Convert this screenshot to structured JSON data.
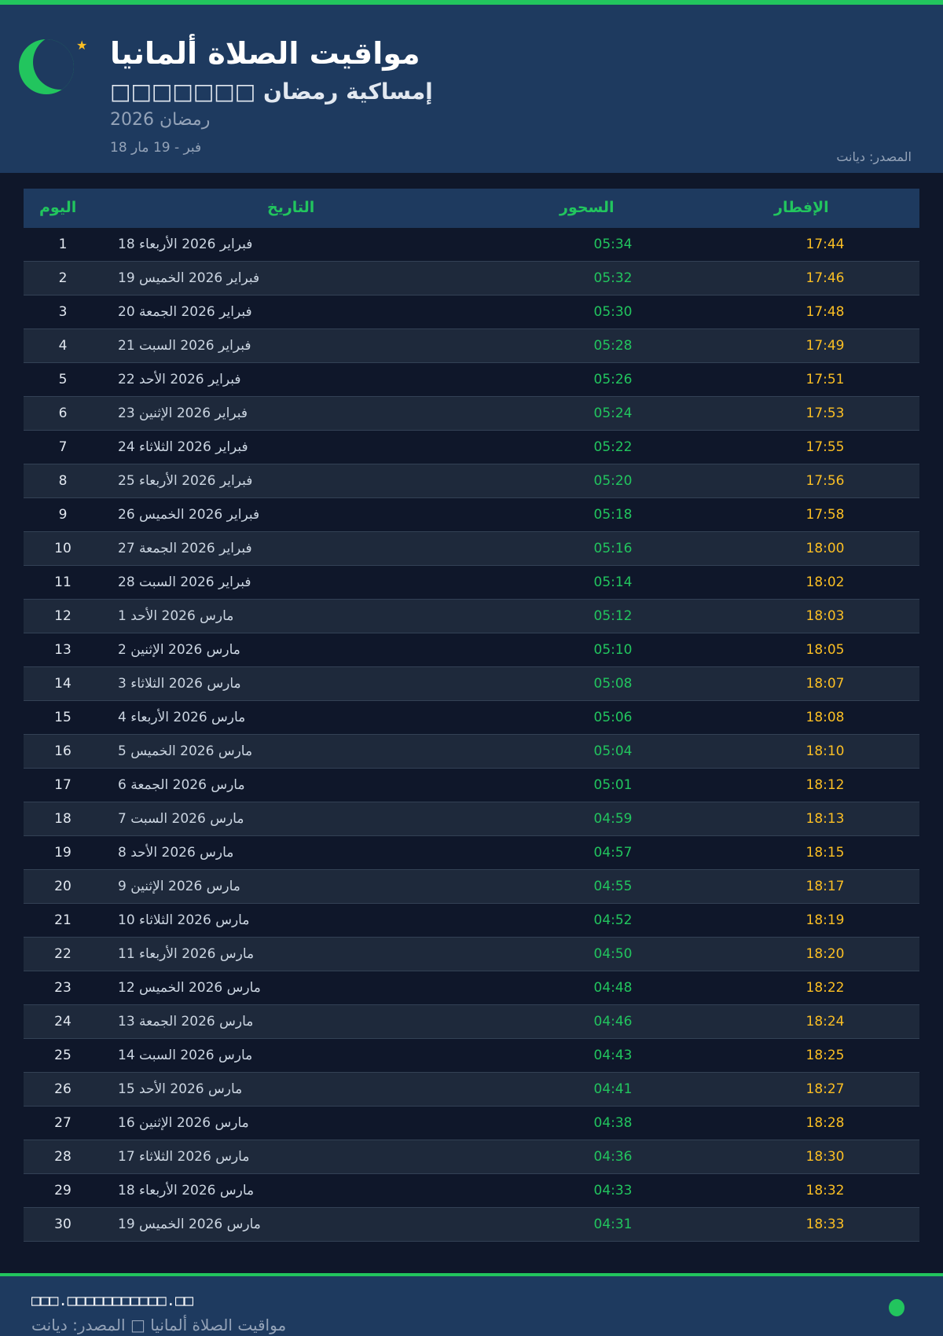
{
  "header": {
    "title": "مواقيت الصلاة ألمانيا",
    "subtitle": "□□□□□□□ إمساكية رمضان",
    "year": "رمضان 2026",
    "range": "18 فبر - 19 مار",
    "source": "المصدر: ديانت"
  },
  "colors": {
    "accent": "#22c55e",
    "iftar": "#fbbf24",
    "header_bg": "#1e3a5f",
    "page_bg": "#0f172a"
  },
  "table": {
    "headers": {
      "day": "اليوم",
      "date": "التاريخ",
      "suhoor": "السحور",
      "iftar": "الإفطار"
    },
    "rows": [
      {
        "day": "1",
        "date": "18 فبراير 2026 الأربعاء",
        "suhoor": "05:34",
        "iftar": "17:44"
      },
      {
        "day": "2",
        "date": "19 فبراير 2026 الخميس",
        "suhoor": "05:32",
        "iftar": "17:46"
      },
      {
        "day": "3",
        "date": "20 فبراير 2026 الجمعة",
        "suhoor": "05:30",
        "iftar": "17:48"
      },
      {
        "day": "4",
        "date": "21 فبراير 2026 السبت",
        "suhoor": "05:28",
        "iftar": "17:49"
      },
      {
        "day": "5",
        "date": "22 فبراير 2026 الأحد",
        "suhoor": "05:26",
        "iftar": "17:51"
      },
      {
        "day": "6",
        "date": "23 فبراير 2026 الإثنين",
        "suhoor": "05:24",
        "iftar": "17:53"
      },
      {
        "day": "7",
        "date": "24 فبراير 2026 الثلاثاء",
        "suhoor": "05:22",
        "iftar": "17:55"
      },
      {
        "day": "8",
        "date": "25 فبراير 2026 الأربعاء",
        "suhoor": "05:20",
        "iftar": "17:56"
      },
      {
        "day": "9",
        "date": "26 فبراير 2026 الخميس",
        "suhoor": "05:18",
        "iftar": "17:58"
      },
      {
        "day": "10",
        "date": "27 فبراير 2026 الجمعة",
        "suhoor": "05:16",
        "iftar": "18:00"
      },
      {
        "day": "11",
        "date": "28 فبراير 2026 السبت",
        "suhoor": "05:14",
        "iftar": "18:02"
      },
      {
        "day": "12",
        "date": "1 مارس 2026 الأحد",
        "suhoor": "05:12",
        "iftar": "18:03"
      },
      {
        "day": "13",
        "date": "2 مارس 2026 الإثنين",
        "suhoor": "05:10",
        "iftar": "18:05"
      },
      {
        "day": "14",
        "date": "3 مارس 2026 الثلاثاء",
        "suhoor": "05:08",
        "iftar": "18:07"
      },
      {
        "day": "15",
        "date": "4 مارس 2026 الأربعاء",
        "suhoor": "05:06",
        "iftar": "18:08"
      },
      {
        "day": "16",
        "date": "5 مارس 2026 الخميس",
        "suhoor": "05:04",
        "iftar": "18:10"
      },
      {
        "day": "17",
        "date": "6 مارس 2026 الجمعة",
        "suhoor": "05:01",
        "iftar": "18:12"
      },
      {
        "day": "18",
        "date": "7 مارس 2026 السبت",
        "suhoor": "04:59",
        "iftar": "18:13"
      },
      {
        "day": "19",
        "date": "8 مارس 2026 الأحد",
        "suhoor": "04:57",
        "iftar": "18:15"
      },
      {
        "day": "20",
        "date": "9 مارس 2026 الإثنين",
        "suhoor": "04:55",
        "iftar": "18:17"
      },
      {
        "day": "21",
        "date": "10 مارس 2026 الثلاثاء",
        "suhoor": "04:52",
        "iftar": "18:19"
      },
      {
        "day": "22",
        "date": "11 مارس 2026 الأربعاء",
        "suhoor": "04:50",
        "iftar": "18:20"
      },
      {
        "day": "23",
        "date": "12 مارس 2026 الخميس",
        "suhoor": "04:48",
        "iftar": "18:22"
      },
      {
        "day": "24",
        "date": "13 مارس 2026 الجمعة",
        "suhoor": "04:46",
        "iftar": "18:24"
      },
      {
        "day": "25",
        "date": "14 مارس 2026 السبت",
        "suhoor": "04:43",
        "iftar": "18:25"
      },
      {
        "day": "26",
        "date": "15 مارس 2026 الأحد",
        "suhoor": "04:41",
        "iftar": "18:27"
      },
      {
        "day": "27",
        "date": "16 مارس 2026 الإثنين",
        "suhoor": "04:38",
        "iftar": "18:28"
      },
      {
        "day": "28",
        "date": "17 مارس 2026 الثلاثاء",
        "suhoor": "04:36",
        "iftar": "18:30"
      },
      {
        "day": "29",
        "date": "18 مارس 2026 الأربعاء",
        "suhoor": "04:33",
        "iftar": "18:32"
      },
      {
        "day": "30",
        "date": "19 مارس 2026 الخميس",
        "suhoor": "04:31",
        "iftar": "18:33"
      }
    ]
  },
  "footer": {
    "url": "□□□.□□□□□□□□□□□.□□",
    "text": "مواقيت الصلاة ألمانيا □ المصدر: ديانت"
  }
}
